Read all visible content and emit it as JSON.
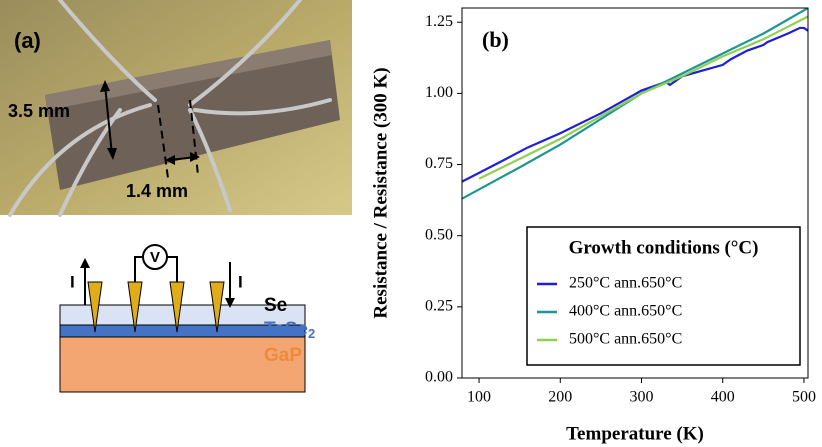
{
  "panel_a": {
    "label": "(a)",
    "height_label": "3.5 mm",
    "gap_label": "1.4 mm"
  },
  "schematic": {
    "voltmeter": "V",
    "current_left": "I",
    "current_right": "I",
    "layer_top": "Se",
    "layer_middle": {
      "text": "TaSe",
      "subscript": "2"
    },
    "layer_bottom": "GaP"
  },
  "chart_data": {
    "type": "line",
    "panel_label": "(b)",
    "x_label": "Temperature (K)",
    "y_label": "Resistance / Resistance (300 K)",
    "legend_title": "Growth conditions (°C)",
    "legend_position": "lower right",
    "xlim": [
      79,
      505
    ],
    "xticks": [
      100,
      200,
      300,
      400,
      500
    ],
    "ylim": [
      0,
      1.3
    ],
    "yticks": [
      {
        "value": 0,
        "label": "0.00"
      },
      {
        "value": 0.25,
        "label": "0.25"
      },
      {
        "value": 0.5,
        "label": "0.50"
      },
      {
        "value": 0.75,
        "label": "0.75"
      },
      {
        "value": 1,
        "label": "1.00"
      },
      {
        "value": 1.25,
        "label": "1.25"
      }
    ],
    "series": [
      {
        "name": "250°C ann.650°C",
        "color": "#1f1fd6",
        "x": [
          79,
          120,
          160,
          200,
          250,
          300,
          320,
          330,
          335,
          350,
          400,
          410,
          430,
          450,
          455,
          480,
          495,
          500,
          505
        ],
        "values": [
          0.69,
          0.75,
          0.81,
          0.86,
          0.93,
          1.01,
          1.03,
          1.04,
          1.03,
          1.06,
          1.1,
          1.12,
          1.15,
          1.17,
          1.18,
          1.21,
          1.23,
          1.23,
          1.22
        ]
      },
      {
        "name": "400°C ann.650°C",
        "color": "#1e9696",
        "x": [
          79,
          150,
          200,
          250,
          300,
          350,
          400,
          450,
          505
        ],
        "values": [
          0.63,
          0.74,
          0.82,
          0.91,
          1.0,
          1.07,
          1.14,
          1.21,
          1.3
        ]
      },
      {
        "name": "500°C ann.650°C",
        "color": "#8fd14f",
        "x": [
          100,
          150,
          200,
          250,
          300,
          350,
          400,
          450,
          505
        ],
        "values": [
          0.7,
          0.77,
          0.84,
          0.92,
          1.0,
          1.06,
          1.13,
          1.19,
          1.27
        ]
      }
    ]
  }
}
